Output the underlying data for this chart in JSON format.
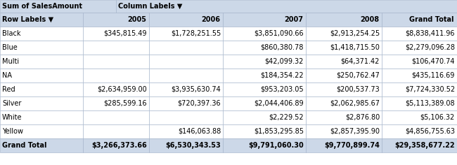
{
  "title_cell": "Sum of SalesAmount",
  "col_label_text": "Column Labels",
  "row_label_text": "Row Labels",
  "columns": [
    "2005",
    "2006",
    "2007",
    "2008",
    "Grand Total"
  ],
  "rows": [
    {
      "label": "Black",
      "2005": "$345,815.49",
      "2006": "$1,728,251.55",
      "2007": "$3,851,090.66",
      "2008": "$2,913,254.25",
      "Grand Total": "$8,838,411.96"
    },
    {
      "label": "Blue",
      "2005": "",
      "2006": "",
      "2007": "$860,380.78",
      "2008": "$1,418,715.50",
      "Grand Total": "$2,279,096.28"
    },
    {
      "label": "Multi",
      "2005": "",
      "2006": "",
      "2007": "$42,099.32",
      "2008": "$64,371.42",
      "Grand Total": "$106,470.74"
    },
    {
      "label": "NA",
      "2005": "",
      "2006": "",
      "2007": "$184,354.22",
      "2008": "$250,762.47",
      "Grand Total": "$435,116.69"
    },
    {
      "label": "Red",
      "2005": "$2,634,959.00",
      "2006": "$3,935,630.74",
      "2007": "$953,203.05",
      "2008": "$200,537.73",
      "Grand Total": "$7,724,330.52"
    },
    {
      "label": "Silver",
      "2005": "$285,599.16",
      "2006": "$720,397.36",
      "2007": "$2,044,406.89",
      "2008": "$2,062,985.67",
      "Grand Total": "$5,113,389.08"
    },
    {
      "label": "White",
      "2005": "",
      "2006": "",
      "2007": "$2,229.52",
      "2008": "$2,876.80",
      "Grand Total": "$5,106.32"
    },
    {
      "label": "Yellow",
      "2005": "",
      "2006": "$146,063.88",
      "2007": "$1,853,295.85",
      "2008": "$2,857,395.90",
      "Grand Total": "$4,856,755.63"
    }
  ],
  "grand_total": {
    "label": "Grand Total",
    "2005": "$3,266,373.66",
    "2006": "$6,530,343.53",
    "2007": "$9,791,060.30",
    "2008": "$9,770,899.74",
    "Grand Total": "$29,358,677.22"
  },
  "header_bg": "#ccd8e8",
  "row_bg": "#ffffff",
  "grand_total_bg": "#ccd8e8",
  "border_color": "#a0b0c8",
  "header_font_size": 7.0,
  "cell_font_size": 7.0,
  "figwidth": 6.5,
  "figheight": 2.36,
  "dpi": 100
}
